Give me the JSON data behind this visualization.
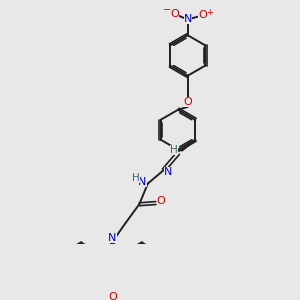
{
  "bg_color": "#e8e8e8",
  "bond_color": "#202020",
  "figsize": [
    3.0,
    3.0
  ],
  "dpi": 100,
  "atom_colors": {
    "N": "#0000cc",
    "O": "#cc0000",
    "H": "#336666",
    "C": "#202020"
  }
}
